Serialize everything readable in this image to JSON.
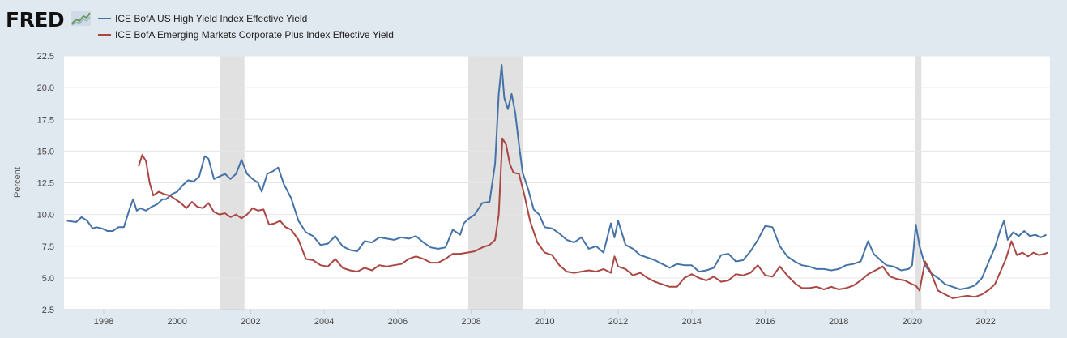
{
  "brand": {
    "logo_text": "FRED"
  },
  "colors": {
    "background": "#e1e9f0",
    "plot_background": "#ffffff",
    "recession": "#e1e1e1",
    "grid": "#e3e6ea"
  },
  "chart_data": {
    "type": "line",
    "xlabel": "",
    "ylabel": "Percent",
    "ylim": [
      2.5,
      22.5
    ],
    "xlim": [
      1996.92,
      2023.75
    ],
    "y_ticks": [
      "2.5",
      "5.0",
      "7.5",
      "10.0",
      "12.5",
      "15.0",
      "17.5",
      "20.0",
      "22.5"
    ],
    "x_ticks": [
      "1998",
      "2000",
      "2002",
      "2004",
      "2006",
      "2008",
      "2010",
      "2012",
      "2014",
      "2016",
      "2018",
      "2020",
      "2022"
    ],
    "grid": true,
    "legend": "top-left",
    "recessions": [
      [
        2001.17,
        2001.83
      ],
      [
        2007.92,
        2009.42
      ],
      [
        2020.08,
        2020.25
      ]
    ],
    "series": [
      {
        "name": "ICE BofA US High Yield Index Effective Yield",
        "color": "#4572a7",
        "x": [
          1997.0,
          1997.25,
          1997.4,
          1997.55,
          1997.7,
          1997.8,
          1997.95,
          1998.1,
          1998.25,
          1998.4,
          1998.55,
          1998.7,
          1998.8,
          1998.9,
          1999.0,
          1999.15,
          1999.3,
          1999.45,
          1999.6,
          1999.7,
          1999.85,
          2000.0,
          2000.15,
          2000.3,
          2000.45,
          2000.6,
          2000.75,
          2000.85,
          2001.0,
          2001.15,
          2001.3,
          2001.45,
          2001.6,
          2001.75,
          2001.9,
          2002.05,
          2002.2,
          2002.3,
          2002.45,
          2002.6,
          2002.75,
          2002.9,
          2003.1,
          2003.3,
          2003.5,
          2003.7,
          2003.9,
          2004.1,
          2004.3,
          2004.5,
          2004.7,
          2004.9,
          2005.1,
          2005.3,
          2005.5,
          2005.7,
          2005.9,
          2006.1,
          2006.3,
          2006.5,
          2006.7,
          2006.9,
          2007.1,
          2007.3,
          2007.5,
          2007.7,
          2007.8,
          2007.9,
          2008.1,
          2008.3,
          2008.5,
          2008.65,
          2008.75,
          2008.83,
          2008.9,
          2009.0,
          2009.1,
          2009.2,
          2009.3,
          2009.4,
          2009.55,
          2009.7,
          2009.85,
          2010.0,
          2010.2,
          2010.4,
          2010.6,
          2010.8,
          2011.0,
          2011.2,
          2011.4,
          2011.6,
          2011.8,
          2011.9,
          2012.0,
          2012.2,
          2012.4,
          2012.6,
          2012.8,
          2013.0,
          2013.2,
          2013.4,
          2013.6,
          2013.8,
          2014.0,
          2014.2,
          2014.4,
          2014.6,
          2014.8,
          2015.0,
          2015.2,
          2015.4,
          2015.6,
          2015.8,
          2016.0,
          2016.2,
          2016.4,
          2016.6,
          2016.8,
          2017.0,
          2017.2,
          2017.4,
          2017.6,
          2017.8,
          2018.0,
          2018.2,
          2018.4,
          2018.6,
          2018.8,
          2018.95,
          2019.1,
          2019.3,
          2019.5,
          2019.7,
          2019.9,
          2020.0,
          2020.1,
          2020.2,
          2020.35,
          2020.5,
          2020.7,
          2020.9,
          2021.1,
          2021.3,
          2021.5,
          2021.7,
          2021.9,
          2022.1,
          2022.25,
          2022.4,
          2022.5,
          2022.6,
          2022.75,
          2022.9,
          2023.05,
          2023.2,
          2023.35,
          2023.5,
          2023.65
        ],
        "values": [
          9.5,
          9.4,
          9.8,
          9.5,
          8.9,
          9.0,
          8.9,
          8.7,
          8.7,
          9.0,
          9.0,
          10.4,
          11.2,
          10.3,
          10.5,
          10.3,
          10.6,
          10.8,
          11.2,
          11.2,
          11.6,
          11.8,
          12.3,
          12.7,
          12.6,
          13.0,
          14.6,
          14.4,
          12.8,
          13.0,
          13.2,
          12.8,
          13.2,
          14.3,
          13.2,
          12.8,
          12.5,
          11.8,
          13.2,
          13.4,
          13.7,
          12.4,
          11.3,
          9.5,
          8.6,
          8.3,
          7.6,
          7.7,
          8.3,
          7.5,
          7.2,
          7.1,
          7.9,
          7.8,
          8.2,
          8.1,
          8.0,
          8.2,
          8.1,
          8.3,
          7.8,
          7.4,
          7.3,
          7.4,
          8.8,
          8.4,
          9.3,
          9.6,
          10.0,
          10.9,
          11.0,
          14.0,
          19.5,
          21.8,
          19.2,
          18.3,
          19.5,
          18.0,
          15.5,
          13.3,
          12.0,
          10.4,
          10.0,
          9.0,
          8.9,
          8.5,
          8.0,
          7.8,
          8.2,
          7.3,
          7.5,
          7.0,
          9.3,
          8.2,
          9.5,
          7.6,
          7.3,
          6.8,
          6.6,
          6.4,
          6.1,
          5.8,
          6.1,
          6.0,
          6.0,
          5.5,
          5.6,
          5.8,
          6.8,
          6.9,
          6.3,
          6.4,
          7.1,
          8.0,
          9.1,
          9.0,
          7.5,
          6.7,
          6.3,
          6.0,
          5.9,
          5.7,
          5.7,
          5.6,
          5.7,
          6.0,
          6.1,
          6.3,
          7.9,
          6.9,
          6.5,
          6.0,
          5.9,
          5.6,
          5.7,
          6.0,
          9.2,
          7.5,
          6.0,
          5.4,
          5.0,
          4.5,
          4.3,
          4.1,
          4.2,
          4.4,
          5.0,
          6.4,
          7.4,
          8.8,
          9.5,
          8.0,
          8.6,
          8.3,
          8.7,
          8.3,
          8.4,
          8.2,
          8.4
        ]
      },
      {
        "name": "ICE BofA Emerging Markets Corporate Plus Index Effective Yield",
        "color": "#aa4643",
        "x": [
          1998.95,
          1999.05,
          1999.15,
          1999.25,
          1999.35,
          1999.5,
          1999.65,
          1999.8,
          1999.95,
          2000.1,
          2000.25,
          2000.4,
          2000.55,
          2000.7,
          2000.85,
          2001.0,
          2001.15,
          2001.3,
          2001.45,
          2001.6,
          2001.75,
          2001.9,
          2002.05,
          2002.2,
          2002.35,
          2002.5,
          2002.65,
          2002.8,
          2002.95,
          2003.1,
          2003.3,
          2003.5,
          2003.7,
          2003.9,
          2004.1,
          2004.3,
          2004.5,
          2004.7,
          2004.9,
          2005.1,
          2005.3,
          2005.5,
          2005.7,
          2005.9,
          2006.1,
          2006.3,
          2006.5,
          2006.7,
          2006.9,
          2007.1,
          2007.3,
          2007.5,
          2007.7,
          2007.9,
          2008.1,
          2008.3,
          2008.5,
          2008.65,
          2008.75,
          2008.85,
          2008.95,
          2009.05,
          2009.15,
          2009.3,
          2009.45,
          2009.6,
          2009.8,
          2010.0,
          2010.2,
          2010.4,
          2010.6,
          2010.8,
          2011.0,
          2011.2,
          2011.4,
          2011.6,
          2011.8,
          2011.9,
          2012.0,
          2012.2,
          2012.4,
          2012.6,
          2012.8,
          2013.0,
          2013.2,
          2013.4,
          2013.6,
          2013.8,
          2014.0,
          2014.2,
          2014.4,
          2014.6,
          2014.8,
          2015.0,
          2015.2,
          2015.4,
          2015.6,
          2015.8,
          2016.0,
          2016.2,
          2016.4,
          2016.6,
          2016.8,
          2017.0,
          2017.2,
          2017.4,
          2017.6,
          2017.8,
          2018.0,
          2018.2,
          2018.4,
          2018.6,
          2018.8,
          2019.0,
          2019.2,
          2019.4,
          2019.6,
          2019.8,
          2020.0,
          2020.1,
          2020.2,
          2020.35,
          2020.5,
          2020.7,
          2020.9,
          2021.1,
          2021.3,
          2021.5,
          2021.7,
          2021.9,
          2022.1,
          2022.25,
          2022.4,
          2022.55,
          2022.7,
          2022.85,
          2023.0,
          2023.15,
          2023.3,
          2023.45,
          2023.6,
          2023.7
        ],
        "values": [
          13.8,
          14.7,
          14.2,
          12.5,
          11.5,
          11.8,
          11.6,
          11.5,
          11.2,
          10.9,
          10.5,
          11.0,
          10.6,
          10.5,
          10.9,
          10.2,
          10.0,
          10.1,
          9.8,
          10.0,
          9.7,
          10.0,
          10.5,
          10.3,
          10.4,
          9.2,
          9.3,
          9.5,
          9.0,
          8.8,
          8.0,
          6.5,
          6.4,
          6.0,
          5.9,
          6.5,
          5.8,
          5.6,
          5.5,
          5.8,
          5.6,
          6.0,
          5.9,
          6.0,
          6.1,
          6.5,
          6.7,
          6.5,
          6.2,
          6.2,
          6.5,
          6.9,
          6.9,
          7.0,
          7.1,
          7.4,
          7.6,
          8.0,
          10.0,
          16.0,
          15.5,
          14.0,
          13.3,
          13.2,
          11.5,
          9.5,
          7.8,
          7.0,
          6.8,
          6.0,
          5.5,
          5.4,
          5.5,
          5.6,
          5.5,
          5.7,
          5.4,
          6.7,
          5.9,
          5.7,
          5.2,
          5.4,
          5.0,
          4.7,
          4.5,
          4.3,
          4.3,
          5.0,
          5.3,
          5.0,
          4.8,
          5.1,
          4.7,
          4.8,
          5.3,
          5.2,
          5.4,
          6.0,
          5.2,
          5.1,
          5.9,
          5.2,
          4.6,
          4.2,
          4.2,
          4.3,
          4.1,
          4.3,
          4.1,
          4.2,
          4.4,
          4.8,
          5.3,
          5.6,
          5.9,
          5.1,
          4.9,
          4.8,
          4.5,
          4.4,
          4.0,
          6.3,
          5.5,
          4.0,
          3.7,
          3.4,
          3.5,
          3.6,
          3.5,
          3.7,
          4.1,
          4.5,
          5.5,
          6.5,
          7.9,
          6.8,
          7.0,
          6.7,
          7.0,
          6.8,
          6.9,
          7.0
        ]
      }
    ]
  }
}
